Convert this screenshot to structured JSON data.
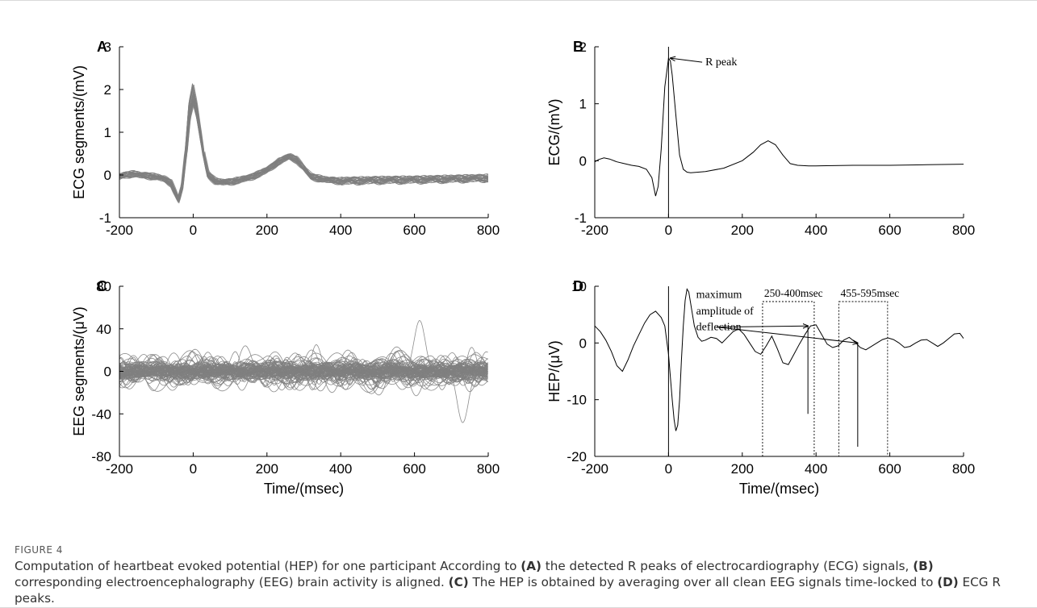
{
  "figure": {
    "label": "FIGURE 4",
    "caption": [
      {
        "t": "Computation of heartbeat evoked potential (HEP) for one participant According to ",
        "b": false
      },
      {
        "t": "(A)",
        "b": true
      },
      {
        "t": " the detected R peaks of electrocardiography (ECG) signals, ",
        "b": false
      },
      {
        "t": "(B)",
        "b": true
      },
      {
        "t": " corresponding electroencephalography (EEG) brain activity is aligned. ",
        "b": false
      },
      {
        "t": "(C)",
        "b": true
      },
      {
        "t": " The HEP is obtained by averaging over all clean EEG signals time-locked to ",
        "b": false
      },
      {
        "t": "(D)",
        "b": true
      },
      {
        "t": " ECG R peaks.",
        "b": false
      }
    ]
  },
  "colors": {
    "trace": "#000000",
    "overlay": "#7f7f7f",
    "axis": "#000000"
  },
  "chart_data": [
    {
      "panel": "A",
      "type": "line",
      "title": "",
      "xlabel": "",
      "ylabel": "ECG segments/(mV)",
      "xlim": [
        -200,
        800
      ],
      "ylim": [
        -1,
        3
      ],
      "xticks": [
        "-200",
        "0",
        "200",
        "400",
        "600",
        "800"
      ],
      "yticks": [
        "-1",
        "0",
        "1",
        "2",
        "3"
      ],
      "style": "overlay",
      "template": {
        "x": [
          -200,
          -180,
          -160,
          -140,
          -120,
          -100,
          -80,
          -60,
          -40,
          -30,
          -20,
          -10,
          0,
          10,
          20,
          30,
          40,
          60,
          80,
          100,
          150,
          200,
          230,
          260,
          280,
          300,
          320,
          360,
          400,
          500,
          600,
          700,
          800
        ],
        "y": [
          -0.05,
          0.0,
          0.02,
          -0.02,
          -0.03,
          -0.05,
          -0.1,
          -0.2,
          -0.6,
          -0.3,
          0.5,
          1.6,
          2.05,
          1.6,
          1.0,
          0.4,
          0.0,
          -0.15,
          -0.18,
          -0.17,
          -0.08,
          0.1,
          0.3,
          0.42,
          0.35,
          0.15,
          -0.05,
          -0.12,
          -0.15,
          -0.13,
          -0.12,
          -0.1,
          -0.08
        ]
      },
      "overlay_count": 30,
      "overlay_spread_mV": 0.12
    },
    {
      "panel": "B",
      "type": "line",
      "title": "",
      "xlabel": "",
      "ylabel": "ECG/(mV)",
      "xlim": [
        -200,
        800
      ],
      "ylim": [
        -1,
        2
      ],
      "xticks": [
        "-200",
        "0",
        "200",
        "400",
        "600",
        "800"
      ],
      "yticks": [
        "-1",
        "0",
        "1",
        "2"
      ],
      "style": "single",
      "series": [
        {
          "x": [
            -200,
            -190,
            -175,
            -160,
            -140,
            -120,
            -100,
            -80,
            -60,
            -45,
            -35,
            -28,
            -20,
            -10,
            0,
            5,
            10,
            20,
            30,
            40,
            50,
            60,
            80,
            100,
            150,
            200,
            230,
            250,
            270,
            290,
            310,
            330,
            350,
            380,
            400,
            500,
            600,
            700,
            800
          ],
          "y": [
            -0.02,
            0.02,
            0.05,
            0.03,
            -0.02,
            -0.05,
            -0.08,
            -0.1,
            -0.15,
            -0.3,
            -0.62,
            -0.45,
            0.2,
            1.3,
            1.8,
            1.75,
            1.5,
            0.8,
            0.1,
            -0.15,
            -0.2,
            -0.21,
            -0.2,
            -0.19,
            -0.13,
            0.0,
            0.15,
            0.28,
            0.35,
            0.28,
            0.1,
            -0.05,
            -0.08,
            -0.09,
            -0.09,
            -0.08,
            -0.08,
            -0.07,
            -0.06
          ]
        }
      ],
      "vlines": [
        {
          "x": 0
        }
      ],
      "annotations": [
        {
          "text": "R peak",
          "arrow_to": [
            5,
            1.8
          ],
          "text_at": [
            100,
            1.73
          ]
        }
      ]
    },
    {
      "panel": "C",
      "type": "line",
      "title": "",
      "xlabel": "Time/(msec)",
      "ylabel": "EEG segments/(μV)",
      "xlim": [
        -200,
        800
      ],
      "ylim": [
        -80,
        80
      ],
      "xticks": [
        "-200",
        "0",
        "200",
        "400",
        "600",
        "800"
      ],
      "yticks": [
        "-80",
        "-40",
        "0",
        "40",
        "80"
      ],
      "style": "overlay",
      "overlay_count": 90,
      "overlay_amplitude_uV": 16,
      "extremes": {
        "max": 48,
        "min": -45
      }
    },
    {
      "panel": "D",
      "type": "line",
      "title": "",
      "xlabel": "Time/(msec)",
      "ylabel": "HEP/(μV)",
      "xlim": [
        -200,
        800
      ],
      "ylim": [
        -20,
        10
      ],
      "xticks": [
        "-200",
        "0",
        "200",
        "400",
        "600",
        "800"
      ],
      "yticks": [
        "-20",
        "-10",
        "0",
        "10"
      ],
      "style": "single",
      "series": [
        {
          "x": [
            -200,
            -185,
            -170,
            -155,
            -140,
            -125,
            -110,
            -95,
            -80,
            -65,
            -50,
            -35,
            -20,
            -10,
            0,
            5,
            10,
            15,
            20,
            25,
            30,
            35,
            40,
            45,
            50,
            55,
            60,
            70,
            80,
            90,
            100,
            115,
            130,
            145,
            160,
            175,
            190,
            205,
            220,
            235,
            250,
            265,
            280,
            295,
            310,
            325,
            340,
            355,
            370,
            385,
            400,
            415,
            430,
            445,
            460,
            475,
            490,
            505,
            520,
            535,
            550,
            565,
            580,
            595,
            610,
            625,
            640,
            655,
            670,
            685,
            700,
            715,
            730,
            745,
            760,
            775,
            790,
            800
          ],
          "y": [
            3.0,
            2.0,
            0.5,
            -1.5,
            -4.0,
            -5.0,
            -3.0,
            -0.5,
            1.5,
            3.5,
            5.0,
            5.6,
            4.5,
            3.0,
            -2.0,
            -6.0,
            -10.0,
            -13.5,
            -15.5,
            -14.5,
            -10.0,
            -3.0,
            3.0,
            7.5,
            9.5,
            9.0,
            7.0,
            3.0,
            1.0,
            0.3,
            0.5,
            1.0,
            0.8,
            0.0,
            1.0,
            2.0,
            2.5,
            1.5,
            0.0,
            -1.5,
            -2.0,
            -0.5,
            1.2,
            -1.0,
            -3.5,
            -3.8,
            -2.0,
            -0.2,
            1.5,
            3.0,
            3.2,
            1.5,
            -0.2,
            -0.8,
            -0.5,
            0.5,
            1.0,
            0.2,
            -0.8,
            -1.2,
            -0.6,
            0.0,
            0.6,
            0.9,
            0.6,
            0.0,
            -0.8,
            -0.6,
            0.0,
            0.5,
            0.6,
            0.0,
            -0.6,
            0.0,
            0.8,
            1.6,
            1.7,
            0.8
          ]
        }
      ],
      "vlines": [
        {
          "x": 0
        },
        {
          "x": 378,
          "from": -12.5,
          "to": 3.0
        },
        {
          "x": 513,
          "from": -18.3,
          "to": 0.0
        }
      ],
      "windows": [
        {
          "label": "250-400msec",
          "x0": 255,
          "x1": 395,
          "y0": -20,
          "y1": 7.3
        },
        {
          "label": "455-595msec",
          "x0": 462,
          "x1": 594,
          "y0": -20,
          "y1": 7.3
        }
      ],
      "annotations": [
        {
          "text": "maximum",
          "text_at": [
            75,
            8.5
          ]
        },
        {
          "text": "amplitude of",
          "text_at": [
            75,
            5.6
          ]
        },
        {
          "text": "deflection",
          "text_at": [
            75,
            2.8
          ],
          "arrows_to": [
            [
              378,
              3.0
            ],
            [
              513,
              0.0
            ]
          ]
        }
      ]
    }
  ]
}
